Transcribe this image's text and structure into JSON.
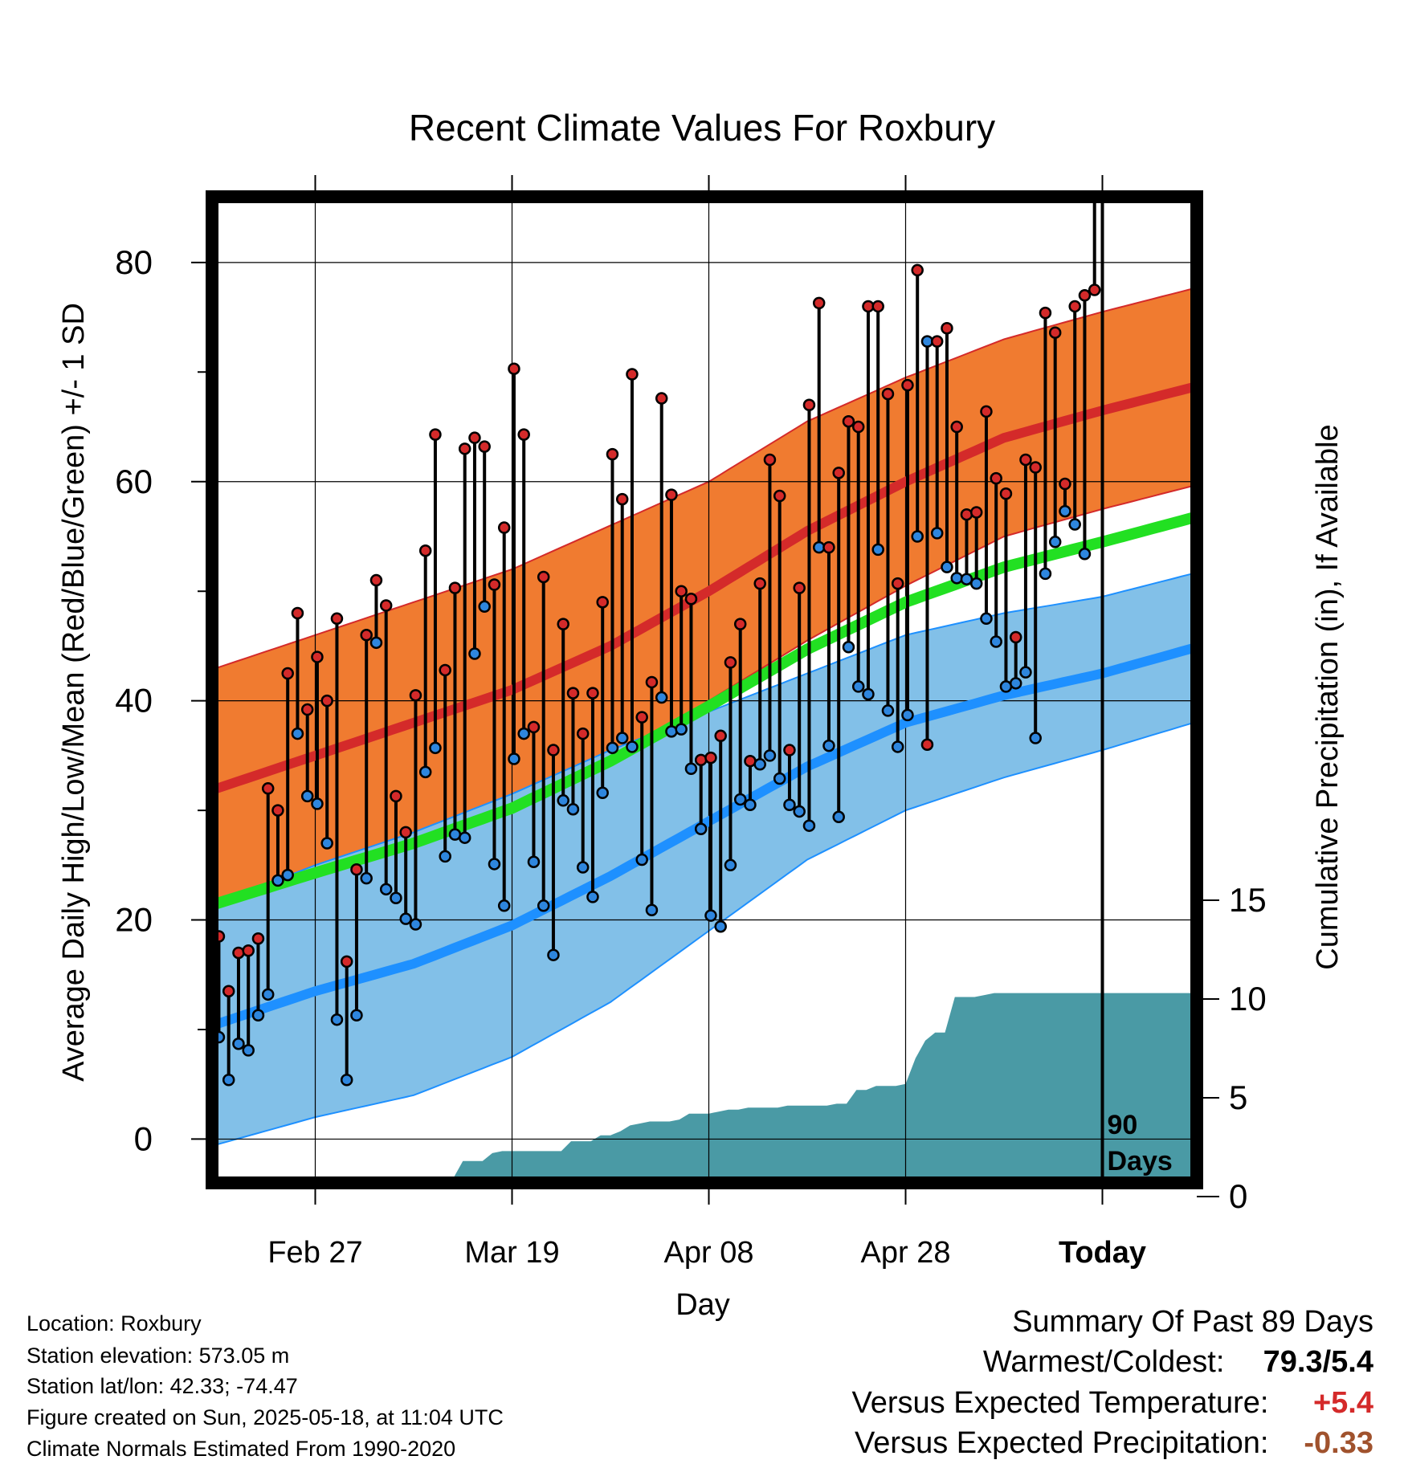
{
  "chart_data": {
    "type": "line",
    "title": "Recent Climate Values For Roxbury",
    "xlabel": "Day",
    "ylabel": "Average Daily High/Low/Mean (Red/Blue/Green) +/- 1 SD",
    "y2label": "Cumulative Precipitation (in), If Available",
    "ylim": [
      -4,
      86
    ],
    "y2lim": [
      0,
      20
    ],
    "yticks": [
      0,
      20,
      40,
      60,
      80
    ],
    "y2ticks": [
      0,
      5,
      10,
      15
    ],
    "xlim": [
      0,
      100
    ],
    "today_day": 90,
    "today_label_line1": "90",
    "today_label_line2": "Days",
    "x_ticks": [
      {
        "day": 10,
        "label": "Feb 27"
      },
      {
        "day": 30,
        "label": "Mar 19"
      },
      {
        "day": 50,
        "label": "Apr 08"
      },
      {
        "day": 70,
        "label": "Apr 28"
      },
      {
        "day": 90,
        "label": "Today"
      }
    ],
    "normals": {
      "days": [
        0,
        10,
        20,
        30,
        40,
        50,
        60,
        70,
        80,
        90,
        100
      ],
      "high_mean": [
        32,
        35,
        38,
        41,
        45,
        50,
        55.5,
        60,
        64,
        66.5,
        68.8
      ],
      "high_sd": [
        11,
        11,
        11,
        11,
        11,
        10,
        10,
        9.5,
        9,
        9,
        9
      ],
      "low_mean": [
        10.5,
        13.5,
        16,
        19.5,
        24,
        29,
        34,
        38,
        40.5,
        42.5,
        45
      ],
      "low_sd": [
        11,
        11.5,
        12,
        12,
        11.5,
        10,
        8.5,
        8,
        7.5,
        7,
        6.8
      ],
      "mean": [
        21.5,
        24.3,
        27,
        30.2,
        34.5,
        39.5,
        44.7,
        49,
        52.2,
        54.5,
        56.9
      ]
    },
    "series": [
      {
        "name": "High",
        "color": "#d42a2a",
        "values": [
          18.5,
          13.5,
          17,
          17.2,
          18.3,
          32,
          30,
          42.5,
          48,
          39.2,
          44,
          40,
          47.5,
          16.2,
          24.6,
          46,
          51,
          48.7,
          31.3,
          28,
          40.5,
          53.7,
          64.3,
          42.8,
          50.3,
          63,
          64,
          63.2,
          50.6,
          55.8,
          70.3,
          64.3,
          37.6,
          51.3,
          35.5,
          47,
          40.7,
          37,
          40.7,
          49,
          62.5,
          58.4,
          69.8,
          38.5,
          41.7,
          67.6,
          58.8,
          50,
          49.3,
          34.6,
          34.8,
          36.8,
          43.5,
          47,
          34.5,
          50.7,
          62,
          58.7,
          35.5,
          50.3,
          67,
          76.3,
          54,
          60.8,
          65.5,
          65,
          76,
          76,
          68,
          50.7,
          68.8,
          79.3,
          36,
          72.8,
          74,
          65,
          57,
          57.2,
          66.4,
          60.3,
          58.9,
          45.8,
          62,
          61.3,
          75.4,
          73.6,
          59.8,
          76,
          77,
          77.5
        ]
      },
      {
        "name": "Low",
        "color": "#2e86de",
        "values": [
          9.3,
          5.4,
          8.7,
          8.1,
          11.3,
          13.2,
          23.6,
          24.1,
          37,
          31.3,
          30.6,
          27,
          10.9,
          5.4,
          11.3,
          23.8,
          45.3,
          22.8,
          22,
          20.1,
          19.6,
          33.5,
          35.7,
          25.8,
          27.8,
          27.5,
          44.3,
          48.6,
          25.1,
          21.3,
          34.7,
          37,
          25.3,
          21.3,
          16.8,
          30.9,
          30.1,
          24.8,
          22.1,
          31.6,
          35.7,
          36.6,
          35.8,
          25.5,
          20.9,
          40.3,
          37.2,
          37.4,
          33.8,
          28.3,
          20.4,
          19.4,
          25,
          31,
          30.5,
          34.2,
          35,
          32.9,
          30.5,
          29.9,
          28.6,
          54,
          35.9,
          29.4,
          44.9,
          41.3,
          40.6,
          53.8,
          39.1,
          35.8,
          38.7,
          55,
          72.8,
          55.3,
          52.2,
          51.2,
          51.1,
          50.7,
          47.5,
          45.4,
          41.3,
          41.6,
          42.6,
          36.6,
          51.6,
          54.5,
          57.3,
          56.1,
          53.4
        ]
      }
    ],
    "precip": {
      "days": [
        10,
        11,
        12,
        13,
        14,
        15,
        16,
        17,
        18,
        19,
        20,
        21,
        22,
        23,
        24,
        25,
        26,
        27,
        28,
        29,
        30,
        31,
        32,
        33,
        34,
        35,
        36,
        37,
        38,
        39,
        40,
        41,
        42,
        43,
        44,
        45,
        46,
        47,
        48,
        49,
        50,
        51,
        52,
        53,
        54,
        55,
        56,
        57,
        58,
        59,
        60,
        61,
        62,
        63,
        64,
        65,
        66,
        67,
        68,
        69,
        70,
        71,
        72,
        73,
        74,
        75,
        76,
        77,
        78,
        79,
        80,
        81,
        82,
        83,
        84,
        85,
        86,
        87,
        88,
        89,
        90,
        91,
        92,
        93,
        94,
        95,
        96,
        97,
        98,
        99,
        100
      ],
      "values": [
        0,
        0.1,
        0.1,
        0.1,
        0.1,
        0.1,
        0.8,
        0.9,
        0.9,
        0.9,
        0.9,
        0.9,
        0.9,
        0.9,
        0.9,
        1.8,
        1.8,
        1.8,
        2.2,
        2.3,
        2.3,
        2.3,
        2.3,
        2.3,
        2.3,
        2.3,
        2.8,
        2.8,
        2.8,
        3.1,
        3.1,
        3.3,
        3.6,
        3.7,
        3.8,
        3.8,
        3.8,
        3.9,
        4.2,
        4.2,
        4.2,
        4.3,
        4.4,
        4.4,
        4.5,
        4.5,
        4.5,
        4.5,
        4.6,
        4.6,
        4.6,
        4.6,
        4.6,
        4.7,
        4.7,
        5.4,
        5.4,
        5.6,
        5.6,
        5.6,
        5.7,
        7.0,
        7.9,
        8.3,
        8.3,
        10.1,
        10.1,
        10.1,
        10.2,
        10.3,
        10.3,
        10.3,
        10.3,
        10.3,
        10.3,
        10.3,
        10.3,
        10.3,
        10.3,
        10.3,
        10.3,
        10.3,
        10.3,
        10.3,
        10.3,
        10.3,
        10.3,
        10.3,
        10.3,
        10.3,
        10.3
      ]
    },
    "colors": {
      "high_band": "#f07b30",
      "high_line": "#d42a2a",
      "low_band": "#82c0e8",
      "low_line": "#1e90ff",
      "mean_line": "#22e022",
      "precip": "#4a9aa5"
    }
  },
  "info": {
    "location": "Location: Roxbury",
    "elevation": "Station elevation: 573.05 m",
    "latlon": "Station lat/lon: 42.33; -74.47",
    "created": "Figure created on Sun, 2025-05-18, at 11:04 UTC",
    "normals": "Climate Normals Estimated From 1990-2020"
  },
  "summary": {
    "title": "Summary Of Past 89 Days",
    "warm_cold_label": "Warmest/Coldest:",
    "warm_cold_value": "79.3/5.4",
    "temp_label": "Versus Expected Temperature:",
    "temp_value": "+5.4",
    "temp_color": "#d42a2a",
    "precip_label": "Versus Expected Precipitation:",
    "precip_value": "-0.33",
    "precip_color": "#a0522d"
  }
}
